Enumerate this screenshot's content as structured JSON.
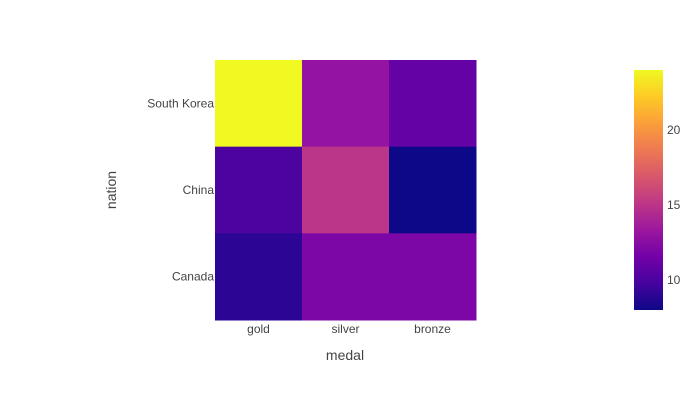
{
  "chart_data": {
    "type": "heatmap",
    "title": "",
    "xlabel": "medal",
    "ylabel": "nation",
    "x_categories": [
      "gold",
      "silver",
      "bronze"
    ],
    "y_categories": [
      "South Korea",
      "China",
      "Canada"
    ],
    "z": [
      [
        24,
        13,
        11
      ],
      [
        10,
        15,
        8
      ],
      [
        9,
        12,
        12
      ]
    ],
    "zrange": [
      8,
      24
    ],
    "colorscale": "plasma",
    "colorbar": {
      "tickvals": [
        10,
        15,
        20
      ],
      "ticktext": [
        "10",
        "15",
        "20"
      ]
    }
  }
}
